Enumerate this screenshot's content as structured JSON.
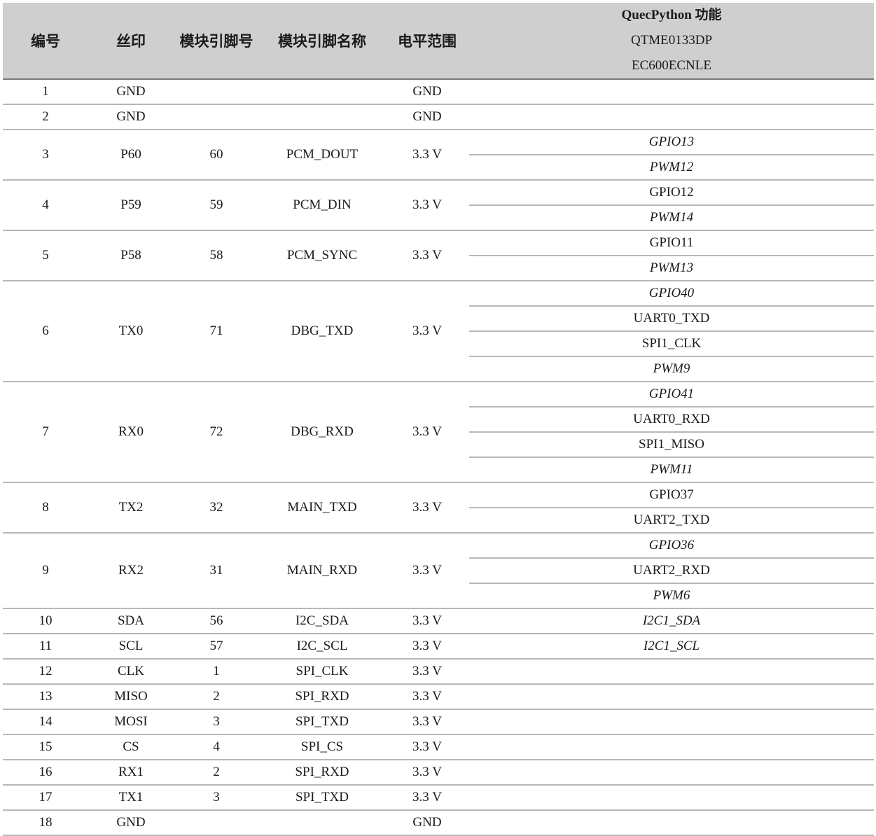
{
  "header": {
    "no": "编号",
    "silk": "丝印",
    "pin": "模块引脚号",
    "pin_name": "模块引脚名称",
    "level": "电平范围",
    "qp_title": "QuecPython 功能",
    "qp_model": "QTME0133DP",
    "qp_module": "EC600ECNLE"
  },
  "rows": [
    {
      "no": "1",
      "silk": "GND",
      "pin": "",
      "pin_name": "",
      "level": "GND",
      "functions": []
    },
    {
      "no": "2",
      "silk": "GND",
      "pin": "",
      "pin_name": "",
      "level": "GND",
      "functions": []
    },
    {
      "no": "3",
      "silk": "P60",
      "pin": "60",
      "pin_name": "PCM_DOUT",
      "level": "3.3 V",
      "functions": [
        {
          "text": "GPIO13",
          "italic": true
        },
        {
          "text": "PWM12",
          "italic": true
        }
      ]
    },
    {
      "no": "4",
      "silk": "P59",
      "pin": "59",
      "pin_name": "PCM_DIN",
      "level": "3.3 V",
      "functions": [
        {
          "text": "GPIO12",
          "italic": false
        },
        {
          "text": "PWM14",
          "italic": true
        }
      ]
    },
    {
      "no": "5",
      "silk": "P58",
      "pin": "58",
      "pin_name": "PCM_SYNC",
      "level": "3.3 V",
      "functions": [
        {
          "text": "GPIO11",
          "italic": false
        },
        {
          "text": "PWM13",
          "italic": true
        }
      ]
    },
    {
      "no": "6",
      "silk": "TX0",
      "pin": "71",
      "pin_name": "DBG_TXD",
      "level": "3.3 V",
      "functions": [
        {
          "text": "GPIO40",
          "italic": true
        },
        {
          "text": "UART0_TXD",
          "italic": false
        },
        {
          "text": "SPI1_CLK",
          "italic": false
        },
        {
          "text": "PWM9",
          "italic": true
        }
      ]
    },
    {
      "no": "7",
      "silk": "RX0",
      "pin": "72",
      "pin_name": "DBG_RXD",
      "level": "3.3 V",
      "functions": [
        {
          "text": "GPIO41",
          "italic": true
        },
        {
          "text": "UART0_RXD",
          "italic": false
        },
        {
          "text": "SPI1_MISO",
          "italic": false
        },
        {
          "text": "PWM11",
          "italic": true
        }
      ]
    },
    {
      "no": "8",
      "silk": "TX2",
      "pin": "32",
      "pin_name": "MAIN_TXD",
      "level": "3.3 V",
      "functions": [
        {
          "text": "GPIO37",
          "italic": false
        },
        {
          "text": "UART2_TXD",
          "italic": false
        }
      ]
    },
    {
      "no": "9",
      "silk": "RX2",
      "pin": "31",
      "pin_name": "MAIN_RXD",
      "level": "3.3 V",
      "functions": [
        {
          "text": "GPIO36",
          "italic": true
        },
        {
          "text": "UART2_RXD",
          "italic": false
        },
        {
          "text": "PWM6",
          "italic": true
        }
      ]
    },
    {
      "no": "10",
      "silk": "SDA",
      "pin": "56",
      "pin_name": "I2C_SDA",
      "level": "3.3 V",
      "functions": [
        {
          "text": "I2C1_SDA",
          "italic": true
        }
      ]
    },
    {
      "no": "11",
      "silk": "SCL",
      "pin": "57",
      "pin_name": "I2C_SCL",
      "level": "3.3 V",
      "functions": [
        {
          "text": "I2C1_SCL",
          "italic": true
        }
      ]
    },
    {
      "no": "12",
      "silk": "CLK",
      "pin": "1",
      "pin_name": "SPI_CLK",
      "level": "3.3 V",
      "functions": []
    },
    {
      "no": "13",
      "silk": "MISO",
      "pin": "2",
      "pin_name": "SPI_RXD",
      "level": "3.3 V",
      "functions": []
    },
    {
      "no": "14",
      "silk": "MOSI",
      "pin": "3",
      "pin_name": "SPI_TXD",
      "level": "3.3 V",
      "functions": []
    },
    {
      "no": "15",
      "silk": "CS",
      "pin": "4",
      "pin_name": "SPI_CS",
      "level": "3.3 V",
      "functions": []
    },
    {
      "no": "16",
      "silk": "RX1",
      "pin": "2",
      "pin_name": "SPI_RXD",
      "level": "3.3 V",
      "functions": []
    },
    {
      "no": "17",
      "silk": "TX1",
      "pin": "3",
      "pin_name": "SPI_TXD",
      "level": "3.3 V",
      "functions": []
    },
    {
      "no": "18",
      "silk": "GND",
      "pin": "",
      "pin_name": "",
      "level": "GND",
      "functions": []
    }
  ]
}
